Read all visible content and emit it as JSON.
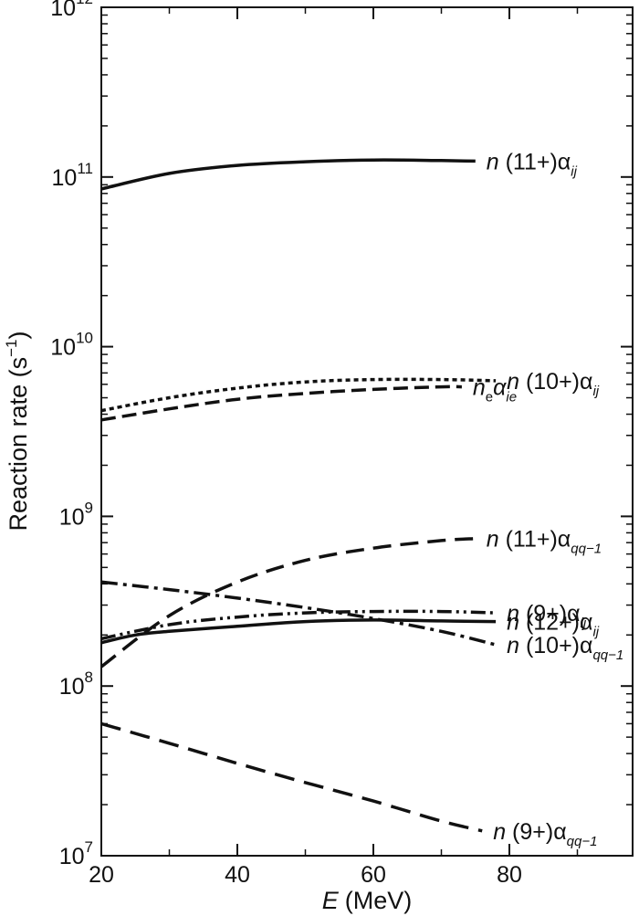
{
  "chart_data": {
    "type": "line",
    "title": "",
    "xlabel": {
      "var": "E",
      "unit": "(MeV)"
    },
    "ylabel": {
      "text": "Reaction rate (s",
      "sup": "−1",
      "close": ")"
    },
    "xlim": [
      20,
      95
    ],
    "ylim_log10": [
      7,
      12
    ],
    "yscale": "log",
    "x_ticks": [
      20,
      40,
      60,
      80
    ],
    "y_ticks": [
      {
        "value": 7,
        "base": "10",
        "exp": "7"
      },
      {
        "value": 8,
        "base": "10",
        "exp": "8"
      },
      {
        "value": 9,
        "base": "10",
        "exp": "9"
      },
      {
        "value": 10,
        "base": "10",
        "exp": "10"
      },
      {
        "value": 11,
        "base": "10",
        "exp": "11"
      },
      {
        "value": 12,
        "base": "10",
        "exp": "12"
      }
    ],
    "grid": false,
    "series": [
      {
        "id": "n11-aij",
        "dash": "none",
        "label": {
          "pre": "n",
          "mid": " (11+)α",
          "sub": "ij"
        },
        "x": [
          20,
          30,
          40,
          50,
          60,
          70,
          75
        ],
        "y": [
          85000000000.0,
          105000000000.0,
          117000000000.0,
          123000000000.0,
          126000000000.0,
          125000000000.0,
          124000000000.0
        ]
      },
      {
        "id": "n10-aij",
        "dash": "5,4",
        "label": {
          "pre": "n",
          "mid": " (10+)α",
          "sub": "ij"
        },
        "x": [
          20,
          30,
          40,
          50,
          60,
          70,
          78
        ],
        "y": [
          4200000000.0,
          5000000000.0,
          5700000000.0,
          6200000000.0,
          6400000000.0,
          6400000000.0,
          6300000000.0
        ]
      },
      {
        "id": "ne-aie",
        "dash": "16,7",
        "label": {
          "pre": "n",
          "mid_sub": "e",
          "mid": "α",
          "sub": "ie"
        },
        "x": [
          20,
          30,
          40,
          50,
          60,
          70,
          73
        ],
        "y": [
          3700000000.0,
          4300000000.0,
          4900000000.0,
          5300000000.0,
          5600000000.0,
          5800000000.0,
          5800000000.0
        ]
      },
      {
        "id": "n11-aqq",
        "dash": "20,10",
        "label": {
          "pre": "n",
          "mid": " (11+)α",
          "sub": "qq−1"
        },
        "x": [
          20,
          30,
          40,
          50,
          60,
          70,
          75
        ],
        "y": [
          130000000.0,
          260000000.0,
          410000000.0,
          550000000.0,
          650000000.0,
          720000000.0,
          740000000.0
        ]
      },
      {
        "id": "n9-aij",
        "dash": "16,5,3,5,3,5",
        "label": {
          "pre": "n",
          "mid": " (9+)α",
          "sub": "ij"
        },
        "x": [
          20,
          30,
          40,
          50,
          60,
          70,
          78
        ],
        "y": [
          190000000.0,
          230000000.0,
          255000000.0,
          270000000.0,
          275000000.0,
          275000000.0,
          270000000.0
        ]
      },
      {
        "id": "n12-aij",
        "dash": "none",
        "label": {
          "pre": "n",
          "mid": " (12+)α",
          "sub": "ij"
        },
        "x": [
          20,
          25,
          30,
          40,
          50,
          60,
          70,
          78
        ],
        "y": [
          180000000.0,
          200000000.0,
          210000000.0,
          225000000.0,
          240000000.0,
          245000000.0,
          242000000.0,
          240000000.0
        ]
      },
      {
        "id": "n10-aqq",
        "dash": "18,6,4,6",
        "label": {
          "pre": "n",
          "mid": " (10+)α",
          "sub": "qq−1"
        },
        "x": [
          20,
          30,
          40,
          50,
          60,
          70,
          78
        ],
        "y": [
          410000000.0,
          370000000.0,
          330000000.0,
          290000000.0,
          250000000.0,
          210000000.0,
          175000000.0
        ]
      },
      {
        "id": "n9-aqq",
        "dash": "22,11",
        "label": {
          "pre": "n",
          "mid": " (9+)α",
          "sub": "qq−1"
        },
        "x": [
          20,
          30,
          40,
          50,
          60,
          70,
          76
        ],
        "y": [
          60000000.0,
          46000000.0,
          35000000.0,
          27000000.0,
          21000000.0,
          16000000.0,
          14000000.0
        ]
      }
    ]
  }
}
